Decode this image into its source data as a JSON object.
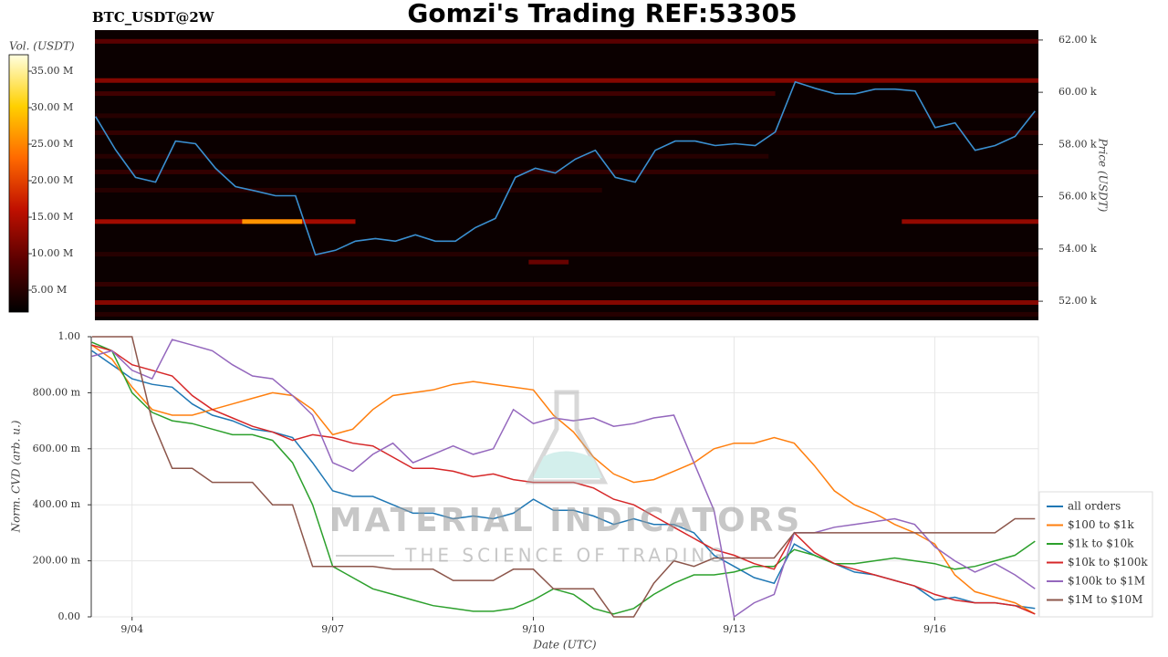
{
  "chart_data": [
    {
      "type": "heatmap",
      "title": "Gomzi's Trading REF:53305",
      "subtitle": "BTC_USDT@2W",
      "ylabel": "Price (USDT)",
      "xlim": [
        3.39,
        17.55
      ],
      "ylim": [
        51270,
        62380
      ],
      "yticks": [
        {
          "value": 52000,
          "label": "52.00 k"
        },
        {
          "value": 54000,
          "label": "54.00 k"
        },
        {
          "value": 56000,
          "label": "56.00 k"
        },
        {
          "value": 58000,
          "label": "58.00 k"
        },
        {
          "value": 60000,
          "label": "60.00 k"
        },
        {
          "value": 62000,
          "label": "62.00 k"
        }
      ],
      "colormap": [
        "#000000",
        "#5a0000",
        "#c01000",
        "#ff6a00",
        "#ffd000",
        "#ffffe0"
      ],
      "colorbar": {
        "label": "Vol. (USDT)",
        "lim": [
          2000000,
          37250000
        ],
        "ticks": [
          {
            "value": 5000000,
            "label": "5.00 M"
          },
          {
            "value": 10000000,
            "label": "10.00 M"
          },
          {
            "value": 15000000,
            "label": "15.00 M"
          },
          {
            "value": 20000000,
            "label": "20.00 M"
          },
          {
            "value": 25000000,
            "label": "25.00 M"
          },
          {
            "value": 30000000,
            "label": "30.00 M"
          },
          {
            "value": 35000000,
            "label": "35.00 M"
          }
        ]
      },
      "bands": [
        {
          "price": 61950,
          "start": 3.39,
          "end": 17.55,
          "volume": 9000000
        },
        {
          "price": 60450,
          "start": 3.39,
          "end": 17.55,
          "volume": 12000000
        },
        {
          "price": 59950,
          "start": 3.39,
          "end": 13.6,
          "volume": 7000000
        },
        {
          "price": 59100,
          "start": 3.39,
          "end": 17.55,
          "volume": 5000000
        },
        {
          "price": 58450,
          "start": 3.39,
          "end": 17.55,
          "volume": 6000000
        },
        {
          "price": 57550,
          "start": 3.39,
          "end": 13.5,
          "volume": 5000000
        },
        {
          "price": 56950,
          "start": 3.39,
          "end": 17.55,
          "volume": 6000000
        },
        {
          "price": 56250,
          "start": 3.39,
          "end": 11.0,
          "volume": 5000000
        },
        {
          "price": 55050,
          "start": 3.39,
          "end": 7.3,
          "volume": 14000000
        },
        {
          "price": 55050,
          "start": 5.6,
          "end": 6.5,
          "volume": 26000000
        },
        {
          "price": 55050,
          "start": 15.5,
          "end": 17.55,
          "volume": 13000000
        },
        {
          "price": 53800,
          "start": 3.39,
          "end": 17.55,
          "volume": 5000000
        },
        {
          "price": 53500,
          "start": 9.9,
          "end": 10.5,
          "volume": 10000000
        },
        {
          "price": 52650,
          "start": 3.39,
          "end": 17.55,
          "volume": 6000000
        },
        {
          "price": 51950,
          "start": 3.39,
          "end": 17.55,
          "volume": 12000000
        },
        {
          "price": 51500,
          "start": 3.39,
          "end": 17.55,
          "volume": 5000000
        }
      ],
      "x": [
        3.4,
        3.7,
        4.0,
        4.3,
        4.6,
        4.9,
        5.2,
        5.5,
        5.8,
        6.1,
        6.4,
        6.7,
        7.0,
        7.3,
        7.6,
        7.9,
        8.2,
        8.5,
        8.8,
        9.1,
        9.4,
        9.7,
        10.0,
        10.3,
        10.6,
        10.9,
        11.2,
        11.5,
        11.8,
        12.1,
        12.4,
        12.7,
        13.0,
        13.3,
        13.6,
        13.9,
        14.2,
        14.5,
        14.8,
        15.1,
        15.4,
        15.7,
        16.0,
        16.3,
        16.6,
        16.9,
        17.2,
        17.5
      ],
      "price": {
        "color": "#3a8fd0",
        "values": [
          59070,
          57800,
          56740,
          56560,
          58130,
          58030,
          57090,
          56390,
          56220,
          56040,
          56040,
          53780,
          53950,
          54300,
          54400,
          54300,
          54540,
          54300,
          54300,
          54820,
          55170,
          56740,
          57090,
          56910,
          57440,
          57780,
          56740,
          56560,
          57780,
          58130,
          58130,
          57960,
          58030,
          57960,
          58480,
          60400,
          60150,
          59940,
          59940,
          60120,
          60120,
          60050,
          58650,
          58830,
          57780,
          57960,
          58310,
          59280
        ]
      }
    },
    {
      "type": "line",
      "xlabel": "Date (UTC)",
      "ylabel": "Norm. CVD (arb. u.)",
      "xlim": [
        3.39,
        17.55
      ],
      "ylim": [
        0,
        1
      ],
      "grid": true,
      "legend": "lower right",
      "xticks": [
        {
          "value": 4,
          "label": "9/04"
        },
        {
          "value": 7,
          "label": "9/07"
        },
        {
          "value": 10,
          "label": "9/10"
        },
        {
          "value": 13,
          "label": "9/13"
        },
        {
          "value": 16,
          "label": "9/16"
        }
      ],
      "yticks": [
        {
          "value": 0,
          "label": "0.00"
        },
        {
          "value": 0.2,
          "label": "200.00 m"
        },
        {
          "value": 0.4,
          "label": "400.00 m"
        },
        {
          "value": 0.6,
          "label": "600.00 m"
        },
        {
          "value": 0.8,
          "label": "800.00 m"
        },
        {
          "value": 1,
          "label": "1.00"
        }
      ],
      "x": [
        3.4,
        3.7,
        4.0,
        4.3,
        4.6,
        4.9,
        5.2,
        5.5,
        5.8,
        6.1,
        6.4,
        6.7,
        7.0,
        7.3,
        7.6,
        7.9,
        8.2,
        8.5,
        8.8,
        9.1,
        9.4,
        9.7,
        10.0,
        10.3,
        10.6,
        10.9,
        11.2,
        11.5,
        11.8,
        12.1,
        12.4,
        12.7,
        13.0,
        13.3,
        13.6,
        13.9,
        14.2,
        14.5,
        14.8,
        15.1,
        15.4,
        15.7,
        16.0,
        16.3,
        16.6,
        16.9,
        17.2,
        17.5
      ],
      "series": [
        {
          "name": "all orders",
          "color": "#1f77b4",
          "values": [
            0.95,
            0.9,
            0.85,
            0.83,
            0.82,
            0.76,
            0.72,
            0.7,
            0.67,
            0.66,
            0.64,
            0.55,
            0.45,
            0.43,
            0.43,
            0.4,
            0.37,
            0.37,
            0.35,
            0.36,
            0.35,
            0.37,
            0.42,
            0.38,
            0.38,
            0.36,
            0.33,
            0.35,
            0.33,
            0.33,
            0.3,
            0.22,
            0.18,
            0.14,
            0.12,
            0.26,
            0.22,
            0.19,
            0.16,
            0.15,
            0.13,
            0.11,
            0.06,
            0.07,
            0.05,
            0.05,
            0.04,
            0.03
          ]
        },
        {
          "name": "$100 to $1k",
          "color": "#ff7f0e",
          "values": [
            0.97,
            0.92,
            0.82,
            0.74,
            0.72,
            0.72,
            0.74,
            0.76,
            0.78,
            0.8,
            0.79,
            0.74,
            0.65,
            0.67,
            0.74,
            0.79,
            0.8,
            0.81,
            0.83,
            0.84,
            0.83,
            0.82,
            0.81,
            0.72,
            0.66,
            0.57,
            0.51,
            0.48,
            0.49,
            0.52,
            0.55,
            0.6,
            0.62,
            0.62,
            0.64,
            0.62,
            0.54,
            0.45,
            0.4,
            0.37,
            0.33,
            0.3,
            0.26,
            0.15,
            0.09,
            0.07,
            0.05,
            0.01
          ]
        },
        {
          "name": "$1k to $10k",
          "color": "#2ca02c",
          "values": [
            0.98,
            0.95,
            0.8,
            0.73,
            0.7,
            0.69,
            0.67,
            0.65,
            0.65,
            0.63,
            0.55,
            0.4,
            0.18,
            0.14,
            0.1,
            0.08,
            0.06,
            0.04,
            0.03,
            0.02,
            0.02,
            0.03,
            0.06,
            0.1,
            0.08,
            0.03,
            0.01,
            0.03,
            0.08,
            0.12,
            0.15,
            0.15,
            0.16,
            0.18,
            0.18,
            0.24,
            0.22,
            0.19,
            0.19,
            0.2,
            0.21,
            0.2,
            0.19,
            0.17,
            0.18,
            0.2,
            0.22,
            0.27
          ]
        },
        {
          "name": "$10k to $100k",
          "color": "#d62728",
          "values": [
            0.97,
            0.95,
            0.9,
            0.88,
            0.86,
            0.79,
            0.74,
            0.71,
            0.68,
            0.66,
            0.63,
            0.65,
            0.64,
            0.62,
            0.61,
            0.57,
            0.53,
            0.53,
            0.52,
            0.5,
            0.51,
            0.49,
            0.48,
            0.48,
            0.48,
            0.46,
            0.42,
            0.4,
            0.36,
            0.32,
            0.28,
            0.24,
            0.22,
            0.19,
            0.17,
            0.3,
            0.23,
            0.19,
            0.17,
            0.15,
            0.13,
            0.11,
            0.08,
            0.06,
            0.05,
            0.05,
            0.04,
            0.01
          ]
        },
        {
          "name": "$100k to $1M",
          "color": "#9467bd",
          "values": [
            0.93,
            0.95,
            0.88,
            0.85,
            0.99,
            0.97,
            0.95,
            0.9,
            0.86,
            0.85,
            0.79,
            0.72,
            0.55,
            0.52,
            0.58,
            0.62,
            0.55,
            0.58,
            0.61,
            0.58,
            0.6,
            0.74,
            0.69,
            0.71,
            0.7,
            0.71,
            0.68,
            0.69,
            0.71,
            0.72,
            0.55,
            0.38,
            0.0,
            0.05,
            0.08,
            0.3,
            0.3,
            0.32,
            0.33,
            0.34,
            0.35,
            0.33,
            0.25,
            0.2,
            0.16,
            0.19,
            0.15,
            0.1
          ]
        },
        {
          "name": "$1M to $10M",
          "color": "#8c564b",
          "values": [
            1.0,
            1.0,
            1.0,
            0.7,
            0.53,
            0.53,
            0.48,
            0.48,
            0.48,
            0.4,
            0.4,
            0.18,
            0.18,
            0.18,
            0.18,
            0.17,
            0.17,
            0.17,
            0.13,
            0.13,
            0.13,
            0.17,
            0.17,
            0.1,
            0.1,
            0.1,
            0.0,
            0.0,
            0.12,
            0.2,
            0.18,
            0.21,
            0.21,
            0.21,
            0.21,
            0.3,
            0.3,
            0.3,
            0.3,
            0.3,
            0.3,
            0.3,
            0.3,
            0.3,
            0.3,
            0.3,
            0.35,
            0.35
          ]
        }
      ]
    }
  ],
  "watermark": {
    "title": "MATERIAL INDICATORS",
    "subtitle": "THE SCIENCE OF TRADING"
  }
}
